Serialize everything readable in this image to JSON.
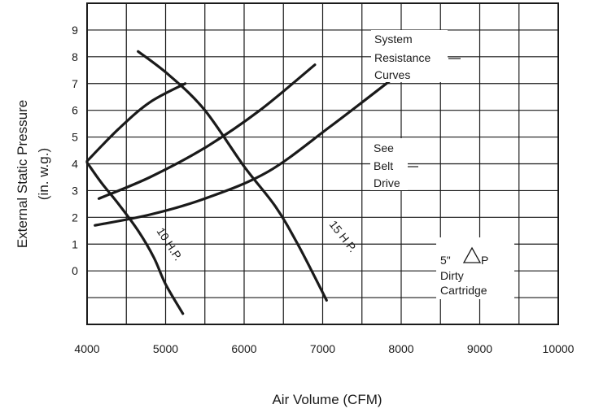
{
  "chart_data": {
    "type": "line",
    "xlabel": "Air Volume (CFM)",
    "ylabel_line1": "External Static Pressure",
    "ylabel_line2": "(in. w.g.)",
    "xlim": [
      4000,
      10000
    ],
    "ylim": [
      -2,
      10
    ],
    "grid": true,
    "x_ticks": [
      4000,
      5000,
      6000,
      7000,
      8000,
      9000,
      10000
    ],
    "x_tick_labels": [
      "4000",
      "5000",
      "6000",
      "7000",
      "8000",
      "9000",
      "10000"
    ],
    "y_ticks": [
      0,
      1,
      2,
      3,
      4,
      5,
      6,
      7,
      8,
      9
    ],
    "y_tick_labels": [
      "0",
      "1",
      "2",
      "3",
      "4",
      "5",
      "6",
      "7",
      "8",
      "9"
    ],
    "series": [
      {
        "name": "10 H.P.",
        "kind": "fan-curve",
        "points": [
          [
            4000,
            4.05
          ],
          [
            4180,
            3.3
          ],
          [
            4400,
            2.5
          ],
          [
            4650,
            1.5
          ],
          [
            4850,
            0.5
          ],
          [
            5000,
            -0.5
          ],
          [
            5220,
            -1.6
          ]
        ]
      },
      {
        "name": "15 H.P.",
        "kind": "fan-curve",
        "points": [
          [
            4650,
            8.2
          ],
          [
            5050,
            7.3
          ],
          [
            5500,
            6.0
          ],
          [
            6000,
            3.9
          ],
          [
            6400,
            2.4
          ],
          [
            6700,
            0.9
          ],
          [
            7050,
            -1.1
          ]
        ]
      },
      {
        "kind": "system-resistance",
        "points": [
          [
            4000,
            4.1
          ],
          [
            4400,
            5.3
          ],
          [
            4800,
            6.3
          ],
          [
            5250,
            7.0
          ]
        ]
      },
      {
        "kind": "system-resistance",
        "points": [
          [
            4150,
            2.7
          ],
          [
            4800,
            3.5
          ],
          [
            5500,
            4.6
          ],
          [
            6200,
            6.0
          ],
          [
            6900,
            7.7
          ]
        ]
      },
      {
        "kind": "system-resistance",
        "points": [
          [
            4100,
            1.7
          ],
          [
            4800,
            2.1
          ],
          [
            5500,
            2.7
          ],
          [
            6300,
            3.7
          ],
          [
            7100,
            5.4
          ],
          [
            7900,
            7.2
          ]
        ]
      }
    ],
    "annotations": {
      "system_resistance": [
        "System",
        "Resistance",
        "Curves"
      ],
      "see_belt_drive": [
        "See",
        "Belt",
        "Drive"
      ],
      "dirty_cartridge": {
        "line1_prefix": "5\"",
        "delta_icon": "triangle-delta-icon",
        "line1_suffix": "P",
        "line2": "Dirty",
        "line3": "Cartridge"
      }
    },
    "colors": {
      "line": "#1a1a1a",
      "grid": "#1a1a1a",
      "background": "#ffffff"
    }
  }
}
